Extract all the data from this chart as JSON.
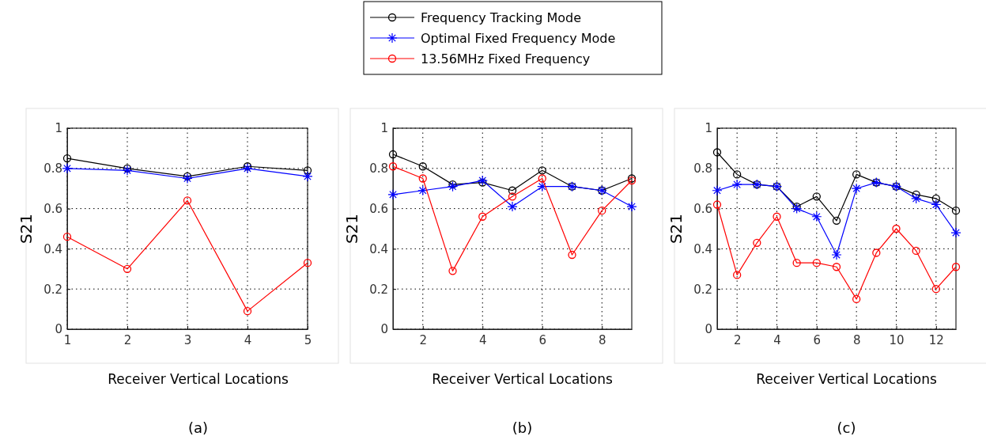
{
  "chart_data": [
    {
      "type": "line",
      "xlabel": "Receiver Vertical Locations",
      "ylabel": "S21",
      "annotations": [
        "(a)"
      ],
      "x": [
        1,
        2,
        3,
        4,
        5
      ],
      "xlim": [
        1,
        5
      ],
      "xticks": [
        1,
        2,
        3,
        4,
        5
      ],
      "ylim": [
        0,
        1
      ],
      "yticks": [
        0,
        0.2,
        0.4,
        0.6,
        0.8,
        1
      ],
      "grid": true,
      "series": [
        {
          "color": "#000000",
          "marker": "circle",
          "values": [
            0.85,
            0.8,
            0.76,
            0.81,
            0.79
          ]
        },
        {
          "color": "#0000ff",
          "marker": "cross",
          "values": [
            0.8,
            0.79,
            0.75,
            0.8,
            0.76
          ]
        },
        {
          "color": "#ff0000",
          "marker": "circle",
          "values": [
            0.46,
            0.3,
            0.64,
            0.09,
            0.33
          ]
        }
      ]
    },
    {
      "type": "line",
      "xlabel": "Receiver Vertical Locations",
      "ylabel": "S21",
      "annotations": [
        "(b)"
      ],
      "x": [
        1,
        2,
        3,
        4,
        5,
        6,
        7,
        8,
        9
      ],
      "xlim": [
        1,
        9
      ],
      "xticks": [
        2,
        4,
        6,
        8
      ],
      "ylim": [
        0,
        1
      ],
      "yticks": [
        0,
        0.2,
        0.4,
        0.6,
        0.8,
        1
      ],
      "grid": true,
      "legend": "top",
      "series": [
        {
          "name": "Frequency Tracking Mode",
          "color": "#000000",
          "marker": "circle",
          "values": [
            0.87,
            0.81,
            0.72,
            0.73,
            0.69,
            0.79,
            0.71,
            0.69,
            0.75
          ]
        },
        {
          "name": "Optimal Fixed Frequency Mode",
          "color": "#0000ff",
          "marker": "cross",
          "values": [
            0.67,
            0.69,
            0.71,
            0.74,
            0.61,
            0.71,
            0.71,
            0.69,
            0.61
          ]
        },
        {
          "name": "13.56MHz Fixed Frequency",
          "color": "#ff0000",
          "marker": "circle",
          "values": [
            0.81,
            0.75,
            0.29,
            0.56,
            0.66,
            0.75,
            0.37,
            0.59,
            0.74
          ]
        }
      ]
    },
    {
      "type": "line",
      "xlabel": "Receiver Vertical Locations",
      "ylabel": "S21",
      "annotations": [
        "(c)"
      ],
      "x": [
        1,
        2,
        3,
        4,
        5,
        6,
        7,
        8,
        9,
        10,
        11,
        12,
        13
      ],
      "xlim": [
        1,
        13
      ],
      "xticks": [
        2,
        4,
        6,
        8,
        10,
        12
      ],
      "ylim": [
        0,
        1
      ],
      "yticks": [
        0,
        0.2,
        0.4,
        0.6,
        0.8,
        1
      ],
      "grid": true,
      "series": [
        {
          "color": "#000000",
          "marker": "circle",
          "values": [
            0.88,
            0.77,
            0.72,
            0.71,
            0.61,
            0.66,
            0.54,
            0.77,
            0.73,
            0.71,
            0.67,
            0.65,
            0.59
          ]
        },
        {
          "color": "#0000ff",
          "marker": "cross",
          "values": [
            0.69,
            0.72,
            0.72,
            0.71,
            0.6,
            0.56,
            0.37,
            0.7,
            0.73,
            0.71,
            0.65,
            0.62,
            0.48
          ]
        },
        {
          "color": "#ff0000",
          "marker": "circle",
          "values": [
            0.62,
            0.27,
            0.43,
            0.56,
            0.33,
            0.33,
            0.31,
            0.15,
            0.38,
            0.5,
            0.39,
            0.2,
            0.31
          ]
        }
      ]
    }
  ]
}
